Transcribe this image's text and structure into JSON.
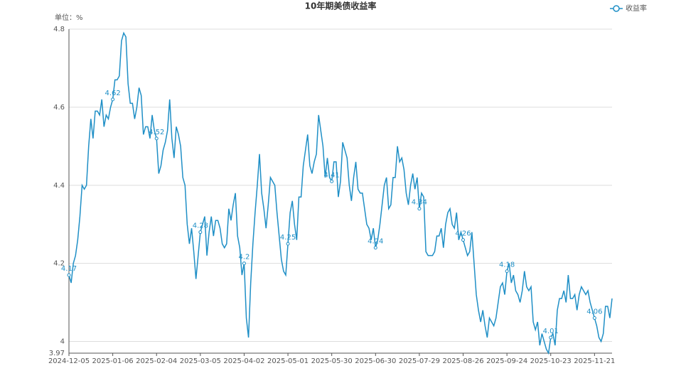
{
  "chart_data": {
    "type": "line",
    "title": "10年期美债收益率",
    "unit_label": "单位：%",
    "categories": [
      "2024-12-05",
      null,
      null,
      null,
      null,
      null,
      null,
      null,
      null,
      null,
      null,
      null,
      null,
      null,
      null,
      null,
      null,
      null,
      null,
      null,
      "2025-01-06",
      null,
      null,
      null,
      null,
      null,
      null,
      null,
      null,
      null,
      null,
      null,
      null,
      null,
      null,
      null,
      null,
      null,
      null,
      null,
      "2025-02-04",
      null,
      null,
      null,
      null,
      null,
      null,
      null,
      null,
      null,
      null,
      null,
      null,
      null,
      null,
      null,
      null,
      null,
      null,
      null,
      "2025-03-05",
      null,
      null,
      null,
      null,
      null,
      null,
      null,
      null,
      null,
      null,
      null,
      null,
      null,
      null,
      null,
      null,
      null,
      null,
      null,
      "2025-04-02",
      null,
      null,
      null,
      null,
      null,
      null,
      null,
      null,
      null,
      null,
      null,
      null,
      null,
      null,
      null,
      null,
      null,
      null,
      null,
      "2025-05-01",
      null,
      null,
      null,
      null,
      null,
      null,
      null,
      null,
      null,
      null,
      null,
      null,
      null,
      null,
      null,
      null,
      null,
      null,
      null,
      "2025-05-30",
      null,
      null,
      null,
      null,
      null,
      null,
      null,
      null,
      null,
      null,
      null,
      null,
      null,
      null,
      null,
      null,
      null,
      null,
      null,
      "2025-06-30",
      null,
      null,
      null,
      null,
      null,
      null,
      null,
      null,
      null,
      null,
      null,
      null,
      null,
      null,
      null,
      null,
      null,
      null,
      null,
      "2025-07-29",
      null,
      null,
      null,
      null,
      null,
      null,
      null,
      null,
      null,
      null,
      null,
      null,
      null,
      null,
      null,
      null,
      null,
      null,
      null,
      "2025-08-26",
      null,
      null,
      null,
      null,
      null,
      null,
      null,
      null,
      null,
      null,
      null,
      null,
      null,
      null,
      null,
      null,
      null,
      null,
      null,
      "2025-09-24",
      null,
      null,
      null,
      null,
      null,
      null,
      null,
      null,
      null,
      null,
      null,
      null,
      null,
      null,
      null,
      null,
      null,
      null,
      null,
      "2025-10-23",
      null,
      null,
      null,
      null,
      null,
      null,
      null,
      null,
      null,
      null,
      null,
      null,
      null,
      null,
      null,
      null,
      null,
      null,
      null,
      "2025-11-21",
      null,
      null,
      null,
      null,
      null,
      null,
      null,
      null
    ],
    "series": [
      {
        "name": "收益率",
        "color": "#1f8fc6",
        "values": [
          4.17,
          4.15,
          4.2,
          4.22,
          4.26,
          4.32,
          4.4,
          4.39,
          4.4,
          4.5,
          4.57,
          4.52,
          4.59,
          4.59,
          4.58,
          4.62,
          4.55,
          4.58,
          4.57,
          4.6,
          4.62,
          4.67,
          4.67,
          4.68,
          4.77,
          4.79,
          4.78,
          4.66,
          4.61,
          4.61,
          4.57,
          4.6,
          4.65,
          4.63,
          4.53,
          4.55,
          4.55,
          4.52,
          4.58,
          4.54,
          4.52,
          4.43,
          4.45,
          4.49,
          4.51,
          4.54,
          4.62,
          4.52,
          4.47,
          4.55,
          4.53,
          4.5,
          4.42,
          4.4,
          4.3,
          4.25,
          4.29,
          4.23,
          4.16,
          4.22,
          4.28,
          4.3,
          4.32,
          4.22,
          4.28,
          4.32,
          4.27,
          4.31,
          4.31,
          4.29,
          4.25,
          4.24,
          4.25,
          4.34,
          4.31,
          4.35,
          4.38,
          4.27,
          4.24,
          4.17,
          4.2,
          4.06,
          4.01,
          4.15,
          4.25,
          4.33,
          4.4,
          4.48,
          4.38,
          4.34,
          4.29,
          4.35,
          4.42,
          4.41,
          4.4,
          4.33,
          4.27,
          4.21,
          4.18,
          4.17,
          4.25,
          4.33,
          4.36,
          4.3,
          4.26,
          4.37,
          4.37,
          4.45,
          4.49,
          4.53,
          4.45,
          4.43,
          4.46,
          4.48,
          4.58,
          4.54,
          4.5,
          4.42,
          4.47,
          4.42,
          4.41,
          4.46,
          4.46,
          4.37,
          4.41,
          4.51,
          4.49,
          4.47,
          4.4,
          4.36,
          4.42,
          4.46,
          4.39,
          4.38,
          4.38,
          4.34,
          4.3,
          4.29,
          4.26,
          4.29,
          4.24,
          4.26,
          4.3,
          4.35,
          4.4,
          4.42,
          4.34,
          4.35,
          4.42,
          4.42,
          4.5,
          4.46,
          4.47,
          4.44,
          4.38,
          4.35,
          4.4,
          4.43,
          4.39,
          4.42,
          4.34,
          4.38,
          4.37,
          4.23,
          4.22,
          4.22,
          4.22,
          4.23,
          4.27,
          4.27,
          4.29,
          4.24,
          4.3,
          4.33,
          4.34,
          4.3,
          4.29,
          4.33,
          4.26,
          4.28,
          4.26,
          4.24,
          4.22,
          4.23,
          4.28,
          4.2,
          4.12,
          4.08,
          4.05,
          4.08,
          4.04,
          4.01,
          4.06,
          4.05,
          4.04,
          4.06,
          4.1,
          4.14,
          4.15,
          4.12,
          4.18,
          4.2,
          4.15,
          4.17,
          4.13,
          4.12,
          4.1,
          4.13,
          4.18,
          4.14,
          4.13,
          4.14,
          4.05,
          4.03,
          4.05,
          3.99,
          4.02,
          4.0,
          3.98,
          3.97,
          4.01,
          4.02,
          3.99,
          4.08,
          4.11,
          4.11,
          4.13,
          4.1,
          4.17,
          4.11,
          4.11,
          4.12,
          4.08,
          4.12,
          4.14,
          4.13,
          4.12,
          4.13,
          4.1,
          4.08,
          4.06,
          4.04,
          4.01,
          4.0,
          4.02,
          4.09,
          4.09,
          4.06,
          4.11
        ]
      }
    ],
    "ylim": [
      3.97,
      4.8
    ],
    "yticks": [
      3.97,
      4,
      4.2,
      4.4,
      4.6,
      4.8
    ],
    "grid": true,
    "legend": "top-right"
  }
}
